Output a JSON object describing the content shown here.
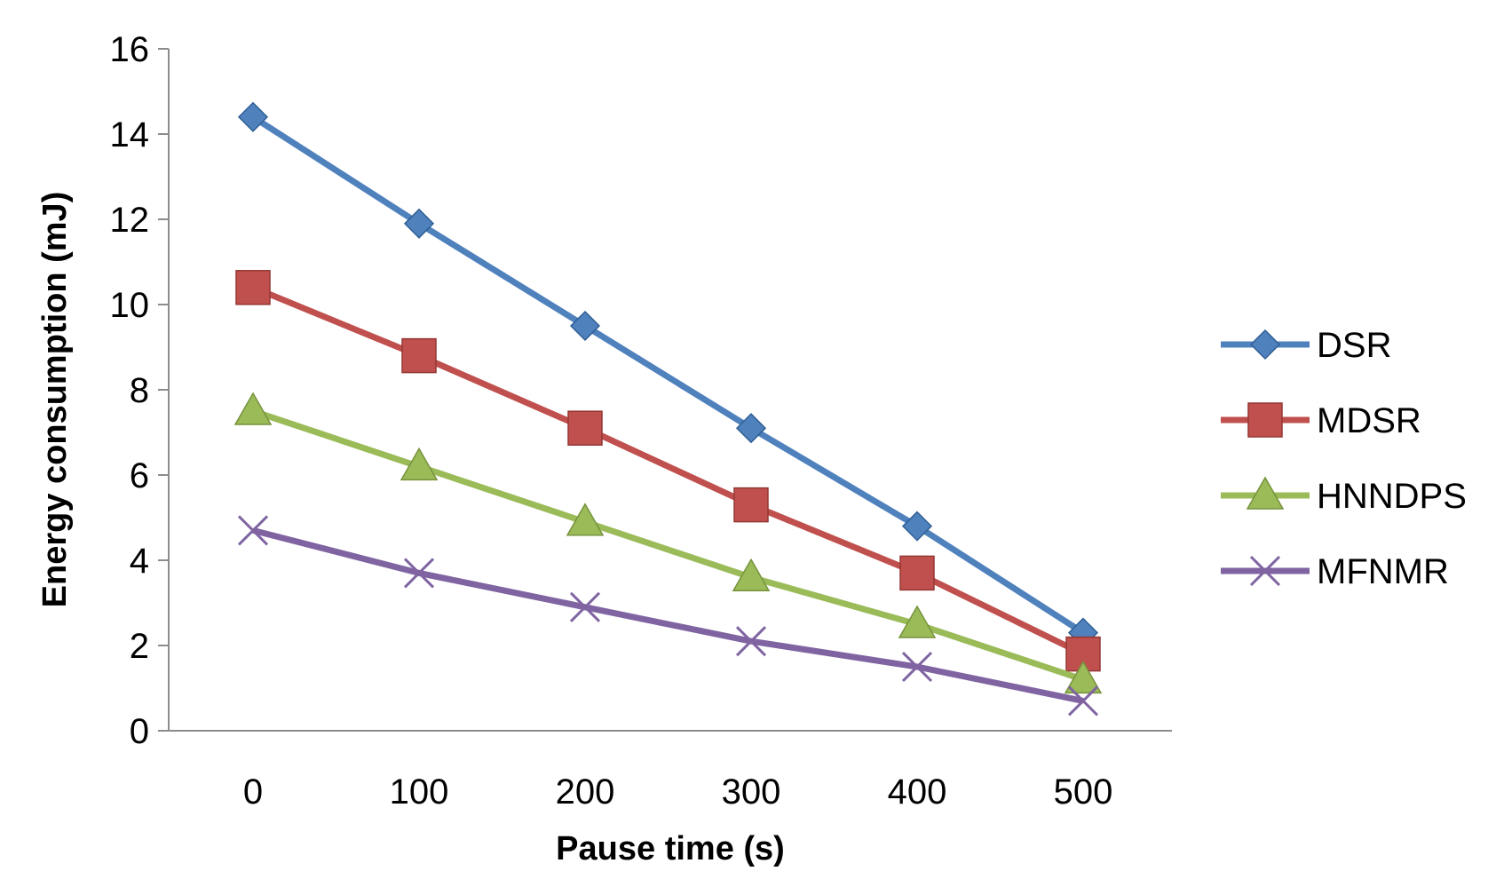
{
  "chart_data": {
    "type": "line",
    "title": "",
    "xlabel": "Pause time (s)",
    "ylabel": "Energy consumption (mJ)",
    "categories": [
      "0",
      "100",
      "200",
      "300",
      "400",
      "500"
    ],
    "ylim": [
      0,
      16
    ],
    "yticks": [
      "0",
      "2",
      "4",
      "6",
      "8",
      "10",
      "12",
      "14",
      "16"
    ],
    "grid": false,
    "legend_position": "right",
    "series": [
      {
        "name": "DSR",
        "color": "#4F81BD",
        "marker": "diamond",
        "values": [
          14.4,
          11.9,
          9.5,
          7.1,
          4.8,
          2.3
        ]
      },
      {
        "name": "MDSR",
        "color": "#C0504D",
        "marker": "square",
        "values": [
          10.4,
          8.8,
          7.1,
          5.3,
          3.7,
          1.8
        ]
      },
      {
        "name": "HNNDPS",
        "color": "#9BBB59",
        "marker": "triangle",
        "values": [
          7.5,
          6.2,
          4.9,
          3.6,
          2.5,
          1.2
        ]
      },
      {
        "name": "MFNMR",
        "color": "#8064A2",
        "marker": "x",
        "values": [
          4.7,
          3.7,
          2.9,
          2.1,
          1.5,
          0.7
        ]
      }
    ]
  }
}
